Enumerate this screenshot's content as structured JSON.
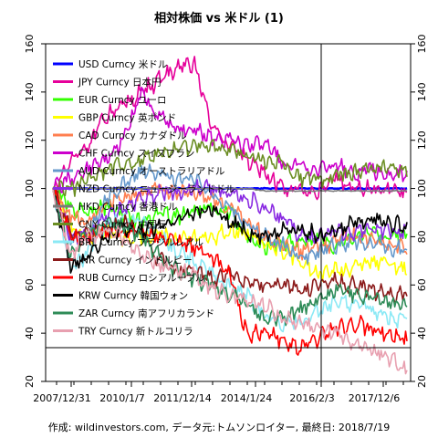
{
  "chart_data": {
    "type": "line",
    "title": "相対株価 vs 米ドル (1)",
    "footer": "作成: wildinvestors.com, データ元:トムソンロイター, 最終日: 2018/7/19",
    "xlabel": "",
    "ylabel": "",
    "x_tick_labels": [
      "2007/12/31",
      "2010/1/7",
      "2011/12/14",
      "2014/1/24",
      "2016/2/3",
      "2017/12/6"
    ],
    "ylim": [
      20,
      160
    ],
    "y_ticks": [
      20,
      40,
      60,
      80,
      100,
      120,
      140,
      160
    ],
    "reference_lines": {
      "horizontal_value": 34,
      "vertical_at": "2016/2/3"
    },
    "legend_position": "top-left",
    "series": [
      {
        "name": "USD Curncy 米ドル",
        "color": "#0000ff",
        "values": [
          100,
          100,
          100,
          100,
          100,
          100,
          100,
          100,
          100,
          100,
          100,
          100,
          100,
          100,
          100,
          100,
          100,
          100,
          100,
          100,
          100
        ]
      },
      {
        "name": "JPY Curncy 日本円",
        "color": "#e6009a",
        "values": [
          100,
          112,
          118,
          130,
          135,
          140,
          145,
          150,
          152,
          125,
          118,
          112,
          106,
          100,
          100,
          98,
          105,
          100,
          100,
          99,
          99
        ]
      },
      {
        "name": "EUR Curncy ユーロ",
        "color": "#33ff00",
        "values": [
          100,
          92,
          90,
          93,
          88,
          86,
          90,
          88,
          92,
          92,
          90,
          80,
          76,
          78,
          78,
          80,
          76,
          80,
          82,
          80,
          80
        ]
      },
      {
        "name": "GBP Curncy 英ポンド",
        "color": "#ffff00",
        "values": [
          100,
          84,
          80,
          82,
          80,
          80,
          81,
          78,
          80,
          80,
          82,
          82,
          76,
          74,
          70,
          64,
          66,
          67,
          70,
          68,
          66
        ]
      },
      {
        "name": "CAD Curncy カナダドル",
        "color": "#ff7f50",
        "values": [
          100,
          88,
          86,
          94,
          96,
          98,
          100,
          98,
          98,
          96,
          92,
          86,
          80,
          76,
          74,
          76,
          78,
          80,
          78,
          76,
          76
        ]
      },
      {
        "name": "CHF Curncy スイスフラン",
        "color": "#cc00cc",
        "values": [
          100,
          104,
          108,
          112,
          120,
          140,
          130,
          125,
          125,
          120,
          120,
          118,
          120,
          110,
          110,
          108,
          110,
          106,
          108,
          106,
          106
        ]
      },
      {
        "name": "AUD Curncy オーストラリアドル",
        "color": "#6699cc",
        "values": [
          100,
          78,
          80,
          96,
          102,
          108,
          106,
          104,
          104,
          98,
          92,
          86,
          80,
          76,
          72,
          74,
          76,
          78,
          78,
          76,
          74
        ]
      },
      {
        "name": "NZD Curncy ニュージーランドドル",
        "color": "#8a2be2",
        "values": [
          100,
          80,
          80,
          88,
          92,
          96,
          98,
          98,
          100,
          100,
          98,
          96,
          92,
          88,
          80,
          80,
          82,
          82,
          84,
          82,
          82
        ]
      },
      {
        "name": "HKD Curncy 香港ドル",
        "color": "#7a7a7a",
        "values": [
          100,
          100,
          100,
          100,
          100,
          100,
          100,
          100,
          100,
          100,
          100,
          100,
          99,
          99,
          99,
          99,
          99,
          99,
          99,
          99,
          99
        ]
      },
      {
        "name": "CNY Curncy 中国元",
        "color": "#6b8e23",
        "values": [
          100,
          100,
          104,
          108,
          110,
          112,
          114,
          116,
          118,
          118,
          116,
          114,
          112,
          110,
          104,
          104,
          106,
          106,
          108,
          108,
          108
        ]
      },
      {
        "name": "BRL Curncy ブラジルレアル",
        "color": "#8be9f5",
        "values": [
          100,
          66,
          74,
          84,
          88,
          86,
          80,
          74,
          70,
          64,
          60,
          56,
          46,
          44,
          44,
          48,
          54,
          52,
          50,
          46,
          46
        ]
      },
      {
        "name": "INR Curncy インドルピー",
        "color": "#8b1a1a",
        "values": [
          100,
          82,
          80,
          84,
          86,
          82,
          70,
          66,
          66,
          62,
          64,
          62,
          60,
          60,
          58,
          60,
          62,
          60,
          58,
          56,
          56
        ]
      },
      {
        "name": "RUB Curncy ロシアルーブル",
        "color": "#ff0000",
        "values": [
          100,
          80,
          80,
          82,
          82,
          82,
          80,
          78,
          76,
          72,
          64,
          38,
          42,
          36,
          34,
          38,
          42,
          44,
          42,
          40,
          38
        ]
      },
      {
        "name": "KRW Curncy 韓国ウォン",
        "color": "#000000",
        "values": [
          100,
          68,
          72,
          80,
          84,
          82,
          84,
          88,
          90,
          92,
          86,
          82,
          80,
          82,
          84,
          80,
          82,
          86,
          88,
          86,
          84
        ]
      },
      {
        "name": "ZAR Curncy 南アフリカランド",
        "color": "#2e8b57",
        "values": [
          100,
          72,
          82,
          86,
          84,
          80,
          72,
          66,
          62,
          60,
          56,
          52,
          46,
          46,
          50,
          54,
          58,
          56,
          54,
          52,
          52
        ]
      },
      {
        "name": "TRY Curncy 新トルコリラ",
        "color": "#e8a0b0",
        "values": [
          100,
          72,
          80,
          82,
          80,
          72,
          68,
          66,
          64,
          58,
          56,
          54,
          52,
          46,
          44,
          42,
          40,
          36,
          34,
          30,
          24
        ]
      }
    ]
  }
}
